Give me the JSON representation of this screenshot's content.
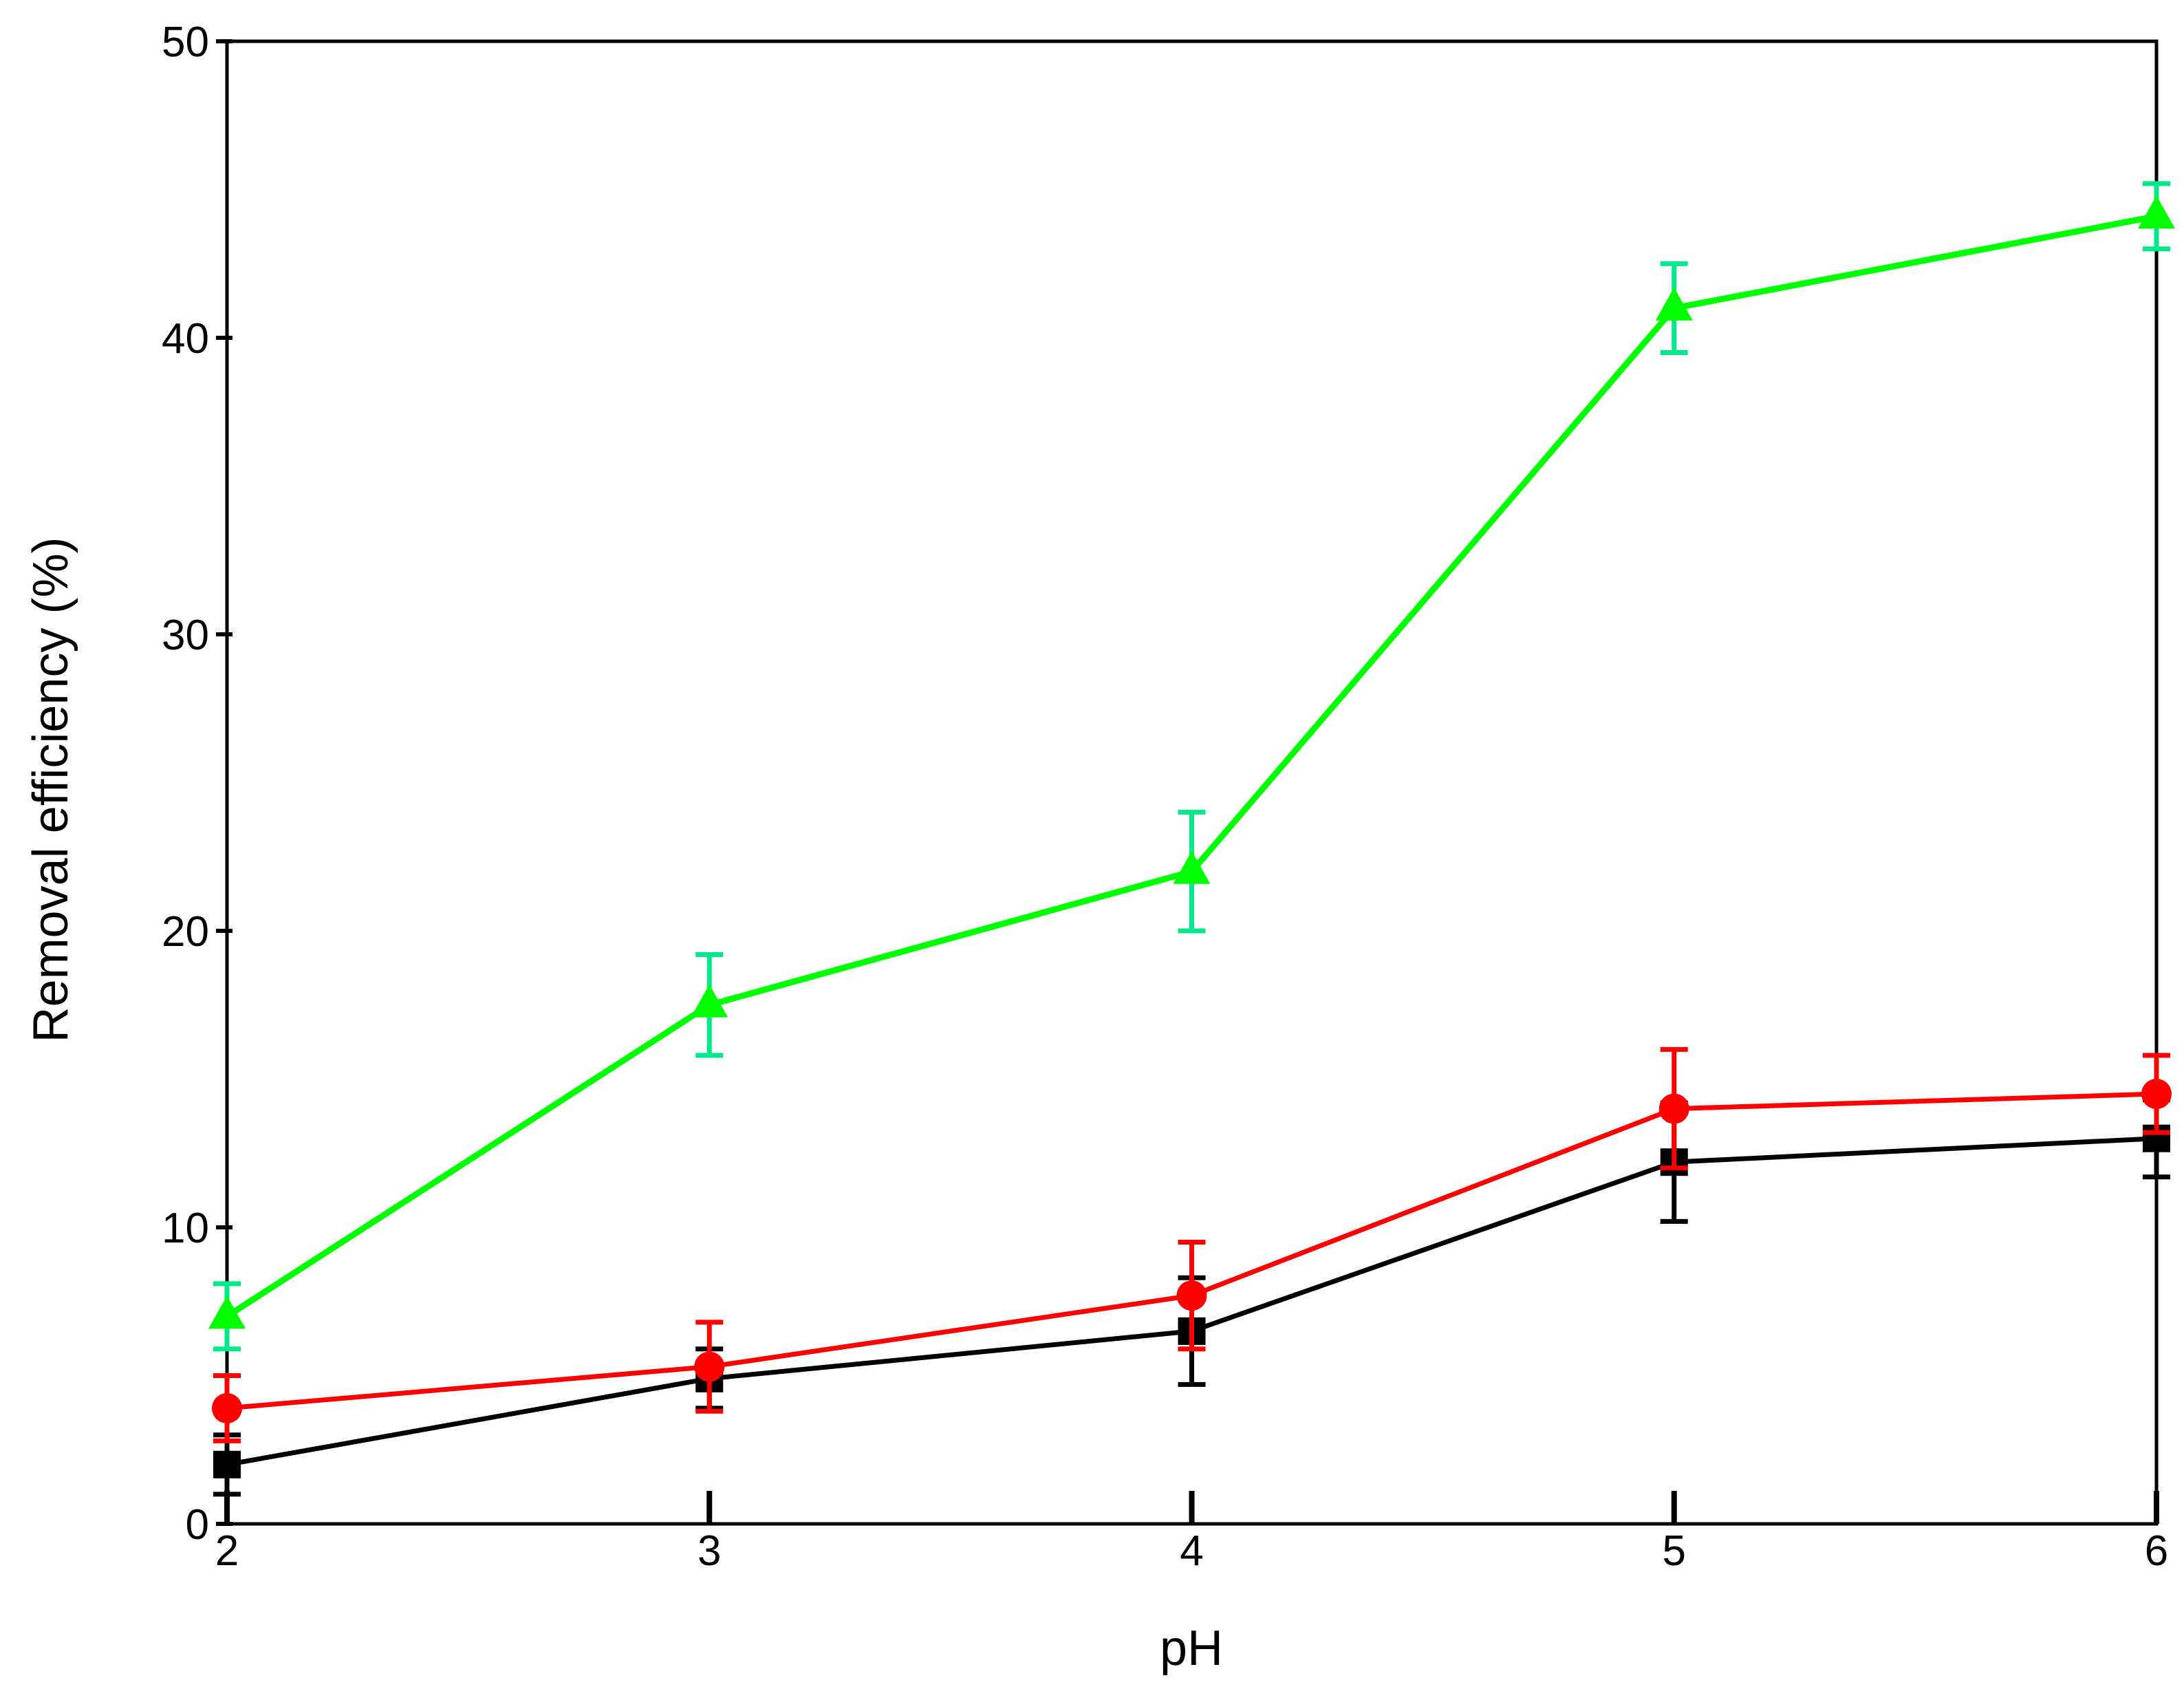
{
  "chart_data": {
    "type": "line",
    "title": "",
    "xlabel": "pH",
    "ylabel": "Removal efficiency (%)",
    "xlim": [
      2,
      6
    ],
    "ylim": [
      0,
      50
    ],
    "x_ticks": [
      2,
      3,
      4,
      5,
      6
    ],
    "y_ticks": [
      0,
      10,
      20,
      30,
      40,
      50
    ],
    "grid": false,
    "legend": "none",
    "x": [
      2,
      3,
      4,
      5,
      6
    ],
    "series": [
      {
        "marker": "square",
        "color": "#000000",
        "values": [
          2.0,
          4.9,
          6.5,
          12.2,
          13.0
        ],
        "errors": [
          1.0,
          1.0,
          1.8,
          2.0,
          1.3
        ]
      },
      {
        "marker": "circle",
        "color": "#ff0000",
        "errors_color": "#ff0000",
        "values": [
          3.9,
          5.3,
          7.7,
          14.0,
          14.5
        ],
        "errors": [
          1.1,
          1.5,
          1.8,
          2.0,
          1.3
        ]
      },
      {
        "marker": "triangle",
        "color": "#00ff00",
        "errors_color": "#00e88a",
        "values": [
          7.0,
          17.5,
          22.0,
          41.0,
          44.1
        ],
        "errors": [
          1.1,
          1.7,
          2.0,
          1.5,
          1.1
        ]
      }
    ]
  }
}
